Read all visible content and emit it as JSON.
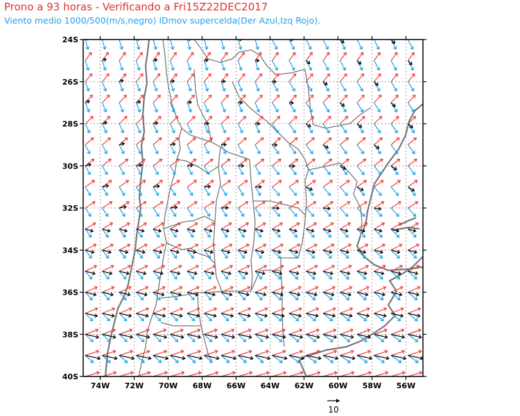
{
  "header": {
    "title": "Prono a 93 horas - Verificando a Fri15Z22DEC2017",
    "subtitle": "Viento medio 1000/500(m/s,negro) IDmov supercelda(Der Azul,Izq Rojo)."
  },
  "axes": {
    "lat_labels": [
      "24S",
      "26S",
      "28S",
      "30S",
      "32S",
      "34S",
      "36S",
      "38S",
      "40S"
    ],
    "lon_labels": [
      "74W",
      "72W",
      "70W",
      "68W",
      "66W",
      "64W",
      "62W",
      "60W",
      "58W",
      "56W"
    ],
    "lat_range": [
      -40,
      -24
    ],
    "lon_range": [
      -75,
      -55
    ]
  },
  "legend": {
    "reference_label": "10"
  },
  "colors": {
    "mean_wind": "#000000",
    "right_mover": "#1ca0e8",
    "left_mover": "#f03c3c",
    "borders": "#777777",
    "grid": "#999999"
  }
}
